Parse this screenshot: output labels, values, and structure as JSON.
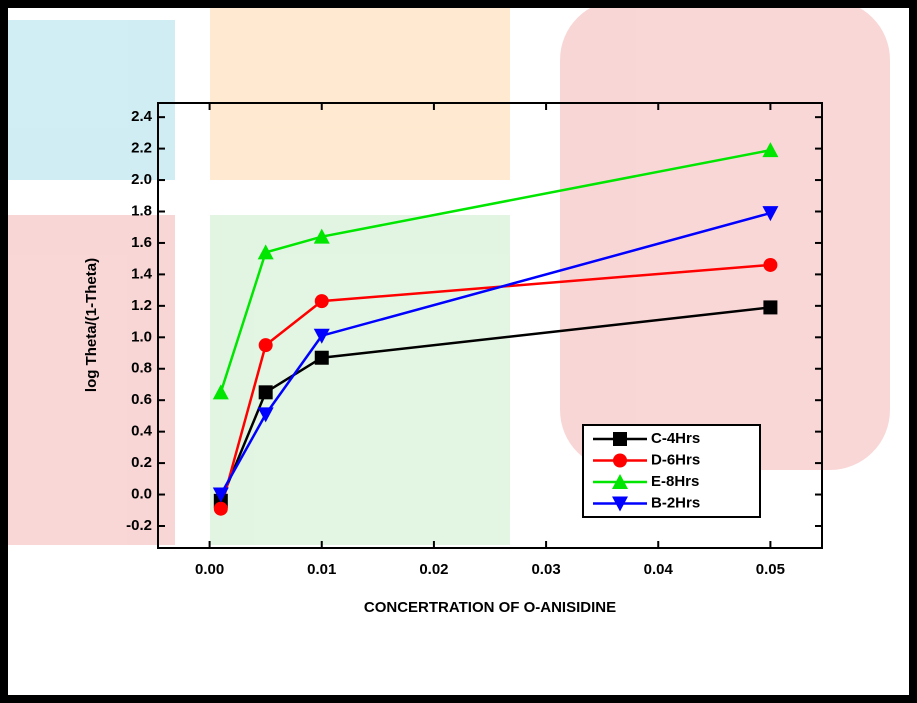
{
  "chart_data": {
    "type": "line",
    "x_label": "CONCERTRATION OF O-ANISIDINE",
    "y_label": "log Theta/(1-Theta)",
    "x": [
      0.001,
      0.005,
      0.01,
      0.05
    ],
    "series": [
      {
        "name": "C-4Hrs",
        "color": "#000000",
        "marker": "square",
        "values": [
          -0.04,
          0.65,
          0.87,
          1.19
        ]
      },
      {
        "name": "D-6Hrs",
        "color": "#ff0000",
        "marker": "circle",
        "values": [
          -0.09,
          0.95,
          1.23,
          1.46
        ]
      },
      {
        "name": "E-8Hrs",
        "color": "#00e600",
        "marker": "triangle-up",
        "values": [
          0.65,
          1.54,
          1.64,
          2.19
        ]
      },
      {
        "name": "B-2Hrs",
        "color": "#0000ff",
        "marker": "triangle-down",
        "values": [
          0.0,
          0.51,
          1.01,
          1.79
        ]
      }
    ],
    "xlim": [
      -0.0046,
      0.0546
    ],
    "xticks": [
      {
        "value": 0,
        "label": "0.00"
      },
      {
        "value": 0.01,
        "label": "0.01"
      },
      {
        "value": 0.02,
        "label": "0.02"
      },
      {
        "value": 0.03,
        "label": "0.03"
      },
      {
        "value": 0.04,
        "label": "0.04"
      },
      {
        "value": 0.05,
        "label": "0.05"
      }
    ],
    "ylim": [
      -0.34,
      2.49
    ],
    "yticks": [
      -0.2,
      {
        "value": 0,
        "label": "0.0"
      },
      0.2,
      0.4,
      0.6,
      0.8,
      {
        "value": 1,
        "label": "1.0"
      },
      1.2,
      1.4,
      1.6,
      1.8,
      {
        "value": 2,
        "label": "2.0"
      },
      2.2,
      2.4
    ],
    "grid": false,
    "legend": "lower right"
  }
}
